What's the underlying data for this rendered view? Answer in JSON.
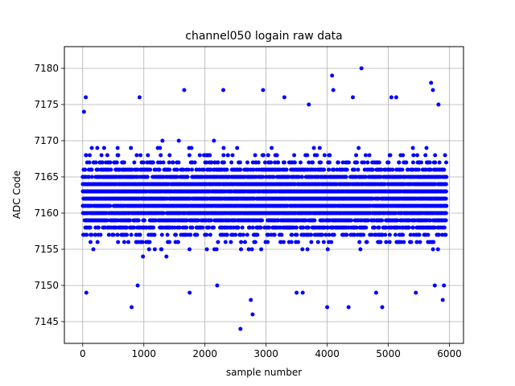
{
  "chart_data": {
    "type": "scatter",
    "title": "channel050 logain raw data",
    "xlabel": "sample number",
    "ylabel": "ADC Code",
    "xlim": [
      -300,
      6230
    ],
    "ylim": [
      7142,
      7183
    ],
    "xticks": [
      0,
      1000,
      2000,
      3000,
      4000,
      5000,
      6000
    ],
    "yticks": [
      7145,
      7150,
      7155,
      7160,
      7165,
      7170,
      7175,
      7180
    ],
    "grid": true,
    "marker_color": "#0000ff",
    "series": [
      {
        "x_start": 0,
        "x_end": 5950,
        "count": 6000,
        "center": 7162,
        "band_min": 7151,
        "band_max": 7173,
        "outliers": [
          [
            20,
            7174
          ],
          [
            50,
            7176
          ],
          [
            60,
            7149
          ],
          [
            900,
            7150
          ],
          [
            800,
            7147
          ],
          [
            930,
            7176
          ],
          [
            1660,
            7177
          ],
          [
            1750,
            7149
          ],
          [
            2200,
            7150
          ],
          [
            2300,
            7177
          ],
          [
            2580,
            7144
          ],
          [
            2750,
            7148
          ],
          [
            2780,
            7146
          ],
          [
            2950,
            7177
          ],
          [
            3300,
            7176
          ],
          [
            3500,
            7149
          ],
          [
            3600,
            7149
          ],
          [
            3700,
            7175
          ],
          [
            4000,
            7147
          ],
          [
            4080,
            7179
          ],
          [
            4100,
            7177
          ],
          [
            4350,
            7147
          ],
          [
            4420,
            7176
          ],
          [
            4560,
            7180
          ],
          [
            4800,
            7149
          ],
          [
            4900,
            7147
          ],
          [
            5050,
            7176
          ],
          [
            5130,
            7176
          ],
          [
            5450,
            7149
          ],
          [
            5700,
            7178
          ],
          [
            5730,
            7177
          ],
          [
            5820,
            7175
          ],
          [
            5890,
            7148
          ],
          [
            5910,
            7150
          ],
          [
            5760,
            7150
          ]
        ]
      }
    ]
  }
}
